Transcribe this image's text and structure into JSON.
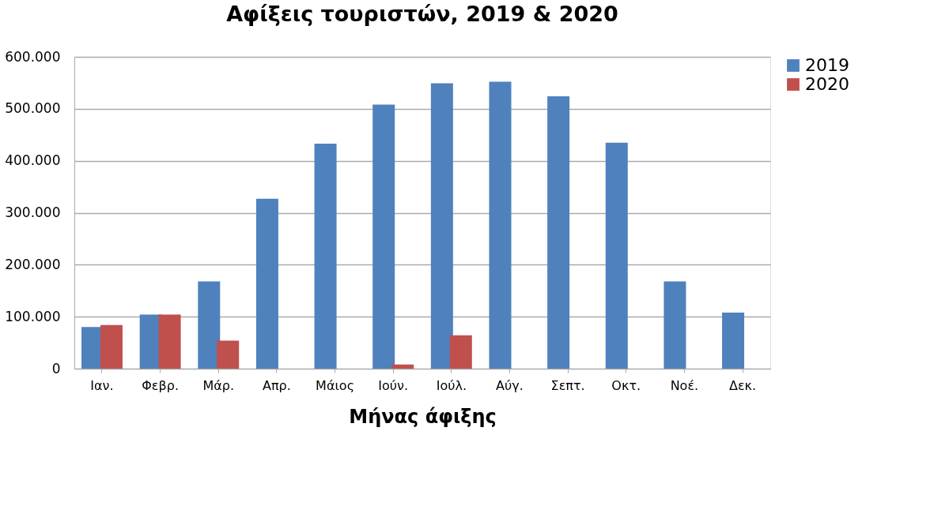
{
  "chart_data": {
    "type": "bar",
    "title": "Αφίξεις τουριστών, 2019 & 2020",
    "xlabel": "Μήνας άφιξης",
    "categories": [
      "Ιαν.",
      "Φεβρ.",
      "Μάρ.",
      "Απρ.",
      "Μάιος",
      "Ιούν.",
      "Ιούλ.",
      "Αύγ.",
      "Σεπτ.",
      "Οκτ.",
      "Νοέ.",
      "Δεκ."
    ],
    "series": [
      {
        "name": "2019",
        "color": "#4f81bd",
        "values": [
          80000,
          104000,
          168000,
          327000,
          433000,
          508000,
          549000,
          552000,
          524000,
          435000,
          168000,
          108000
        ]
      },
      {
        "name": "2020",
        "color": "#c0504d",
        "values": [
          84000,
          104000,
          54000,
          null,
          null,
          8000,
          64000,
          null,
          null,
          null,
          null,
          null
        ]
      }
    ],
    "ylim": [
      0,
      600000
    ],
    "yticks": [
      0,
      {
        "value": 100000,
        "label": "100.000"
      },
      {
        "value": 200000,
        "label": "200.000"
      },
      {
        "value": 300000,
        "label": "300.000"
      },
      {
        "value": 400000,
        "label": "400.000"
      },
      {
        "value": 500000,
        "label": "500.000"
      },
      {
        "value": 600000,
        "label": "600.000"
      }
    ],
    "grid": "y",
    "legend": "right"
  }
}
